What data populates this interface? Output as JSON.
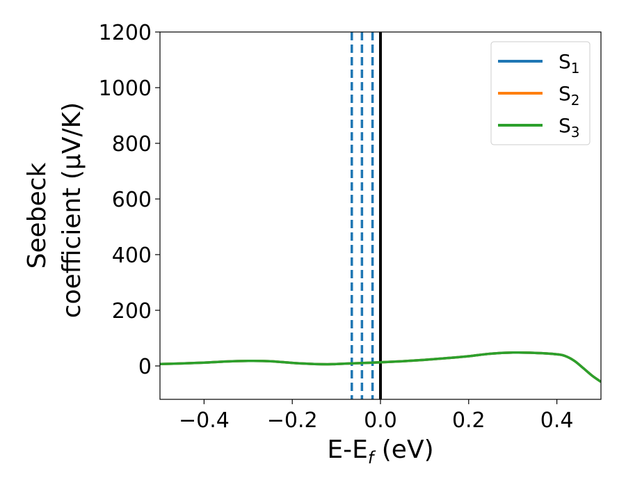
{
  "chart_data": {
    "type": "line",
    "title": "",
    "xlabel": {
      "main": "E-E",
      "sub": "f",
      "unit": " (eV)"
    },
    "ylabel": {
      "line1": "Seebeck",
      "line2": "coefficient  (μV/K)"
    },
    "xlim": [
      -0.5,
      0.5
    ],
    "ylim": [
      -120,
      1200
    ],
    "xticks": [
      -0.4,
      -0.2,
      0.0,
      0.2,
      0.4
    ],
    "xtick_labels": [
      "−0.4",
      "−0.2",
      "0.0",
      "0.2",
      "0.4"
    ],
    "yticks": [
      0,
      200,
      400,
      600,
      800,
      1000,
      1200
    ],
    "ytick_labels": [
      "0",
      "200",
      "400",
      "600",
      "800",
      "1000",
      "1200"
    ],
    "grid": false,
    "legend_position": "top-right",
    "x": [
      -0.5,
      -0.45,
      -0.4,
      -0.35,
      -0.3,
      -0.25,
      -0.2,
      -0.15,
      -0.12,
      -0.1,
      -0.05,
      0.0,
      0.05,
      0.1,
      0.15,
      0.2,
      0.25,
      0.3,
      0.35,
      0.4,
      0.42,
      0.44,
      0.46,
      0.48,
      0.5
    ],
    "series": [
      {
        "name": "S",
        "sub": "1",
        "color": "#1f77b4",
        "values": [
          7,
          9,
          12,
          16,
          18,
          17,
          11,
          7,
          6,
          7,
          10,
          13,
          17,
          22,
          28,
          35,
          44,
          48,
          47,
          42,
          35,
          18,
          -8,
          -35,
          -57
        ]
      },
      {
        "name": "S",
        "sub": "2",
        "color": "#ff7f0e",
        "values": [
          7,
          9,
          12,
          16,
          18,
          17,
          11,
          7,
          6,
          7,
          10,
          13,
          17,
          22,
          28,
          35,
          44,
          48,
          47,
          42,
          35,
          18,
          -8,
          -35,
          -57
        ]
      },
      {
        "name": "S",
        "sub": "3",
        "color": "#2ca02c",
        "values": [
          7,
          9,
          12,
          16,
          18,
          17,
          11,
          7,
          6,
          7,
          10,
          13,
          17,
          22,
          28,
          35,
          44,
          48,
          47,
          42,
          35,
          18,
          -8,
          -35,
          -57
        ]
      }
    ],
    "vlines": [
      {
        "x": -0.065,
        "color": "#1f77b4",
        "style": "dashed"
      },
      {
        "x": -0.042,
        "color": "#1f77b4",
        "style": "dashed"
      },
      {
        "x": -0.018,
        "color": "#1f77b4",
        "style": "dashed"
      },
      {
        "x": 0.0,
        "color": "#000000",
        "style": "solid"
      }
    ]
  }
}
